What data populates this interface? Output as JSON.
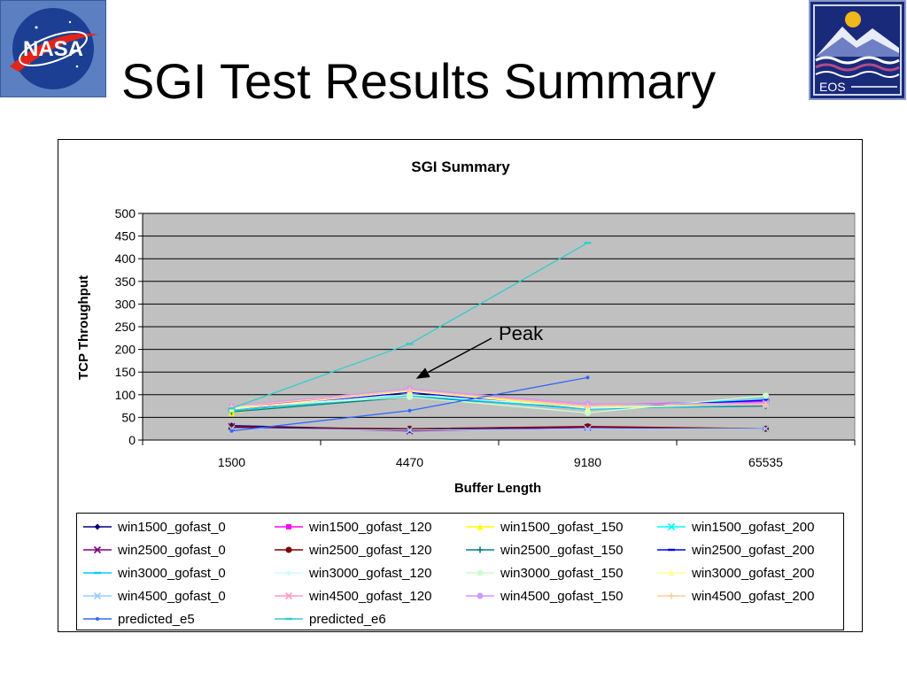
{
  "slide": {
    "title": "SGI Test Results Summary",
    "logo_left_text": "NASA",
    "logo_right_text": "EOS"
  },
  "annotation": {
    "text": "Peak"
  },
  "chart_data": {
    "type": "line",
    "title": "SGI Summary",
    "xlabel": "Buffer Length",
    "ylabel": "TCP Throughput",
    "categories": [
      "1500",
      "4470",
      "9180",
      "65535"
    ],
    "ylim": [
      0,
      500
    ],
    "yticks": [
      0,
      50,
      100,
      150,
      200,
      250,
      300,
      350,
      400,
      450,
      500
    ],
    "grid": true,
    "legend_position": "bottom",
    "series": [
      {
        "name": "win1500_gofast_0",
        "values": [
          32,
          22,
          28,
          25
        ],
        "color": "#000080",
        "marker": "diamond"
      },
      {
        "name": "win1500_gofast_120",
        "values": [
          72,
          110,
          78,
          85
        ],
        "color": "#ff00ff",
        "marker": "square"
      },
      {
        "name": "win1500_gofast_150",
        "values": [
          60,
          107,
          75,
          80
        ],
        "color": "#ffff00",
        "marker": "triangle"
      },
      {
        "name": "win1500_gofast_200",
        "values": [
          70,
          100,
          72,
          90
        ],
        "color": "#00ffff",
        "marker": "x"
      },
      {
        "name": "win2500_gofast_0",
        "values": [
          30,
          20,
          28,
          25
        ],
        "color": "#800080",
        "marker": "x"
      },
      {
        "name": "win2500_gofast_120",
        "values": [
          28,
          25,
          30,
          25
        ],
        "color": "#800000",
        "marker": "circle"
      },
      {
        "name": "win2500_gofast_150",
        "values": [
          62,
          95,
          70,
          75
        ],
        "color": "#008080",
        "marker": "plus"
      },
      {
        "name": "win2500_gofast_200",
        "values": [
          68,
          105,
          70,
          88
        ],
        "color": "#0000ff",
        "marker": "dash"
      },
      {
        "name": "win3000_gofast_0",
        "values": [
          65,
          98,
          68,
          78
        ],
        "color": "#00ccff",
        "marker": "dash"
      },
      {
        "name": "win3000_gofast_120",
        "values": [
          70,
          100,
          72,
          80
        ],
        "color": "#ccffff",
        "marker": "diamond"
      },
      {
        "name": "win3000_gofast_150",
        "values": [
          72,
          95,
          60,
          98
        ],
        "color": "#ccffcc",
        "marker": "circle"
      },
      {
        "name": "win3000_gofast_200",
        "values": [
          68,
          108,
          70,
          80
        ],
        "color": "#ffff99",
        "marker": "triangle"
      },
      {
        "name": "win4500_gofast_0",
        "values": [
          25,
          22,
          24,
          25
        ],
        "color": "#99ccff",
        "marker": "x"
      },
      {
        "name": "win4500_gofast_120",
        "values": [
          74,
          112,
          78,
          82
        ],
        "color": "#ff99cc",
        "marker": "x"
      },
      {
        "name": "win4500_gofast_150",
        "values": [
          75,
          113,
          80,
          80
        ],
        "color": "#cc99ff",
        "marker": "circle"
      },
      {
        "name": "win4500_gofast_200",
        "values": [
          73,
          110,
          75,
          78
        ],
        "color": "#ffcc99",
        "marker": "plus"
      },
      {
        "name": "predicted_e5",
        "values": [
          20,
          65,
          138,
          null
        ],
        "color": "#3366ff",
        "marker": "dot"
      },
      {
        "name": "predicted_e6",
        "values": [
          70,
          212,
          435,
          null
        ],
        "color": "#33cccc",
        "marker": "dash"
      }
    ]
  }
}
